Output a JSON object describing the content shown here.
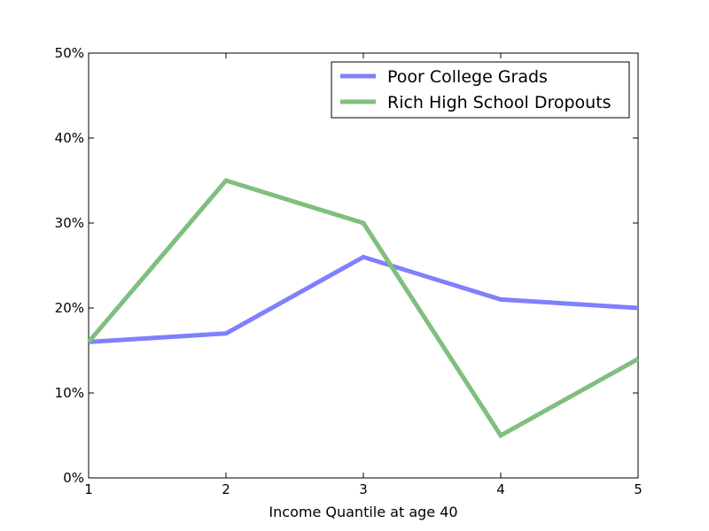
{
  "chart_data": {
    "type": "line",
    "title": "",
    "xlabel": "Income Quantile at age 40",
    "ylabel": "",
    "x": [
      1,
      2,
      3,
      4,
      5
    ],
    "x_ticks": [
      "1",
      "2",
      "3",
      "4",
      "5"
    ],
    "xlim": [
      1,
      5
    ],
    "ylim": [
      0,
      50
    ],
    "y_ticks": [
      0,
      10,
      20,
      30,
      40,
      50
    ],
    "y_tick_labels": [
      "0%",
      "10%",
      "20%",
      "30%",
      "40%",
      "50%"
    ],
    "y_unit": "%",
    "grid": false,
    "legend_position": "top-right",
    "series": [
      {
        "name": "Poor College Grads",
        "values": [
          16,
          17,
          26,
          21,
          20
        ],
        "color": "#7f7fff"
      },
      {
        "name": "Rich High School Dropouts",
        "values": [
          16,
          35,
          30,
          5,
          14
        ],
        "color": "#7fbf7f"
      }
    ]
  }
}
